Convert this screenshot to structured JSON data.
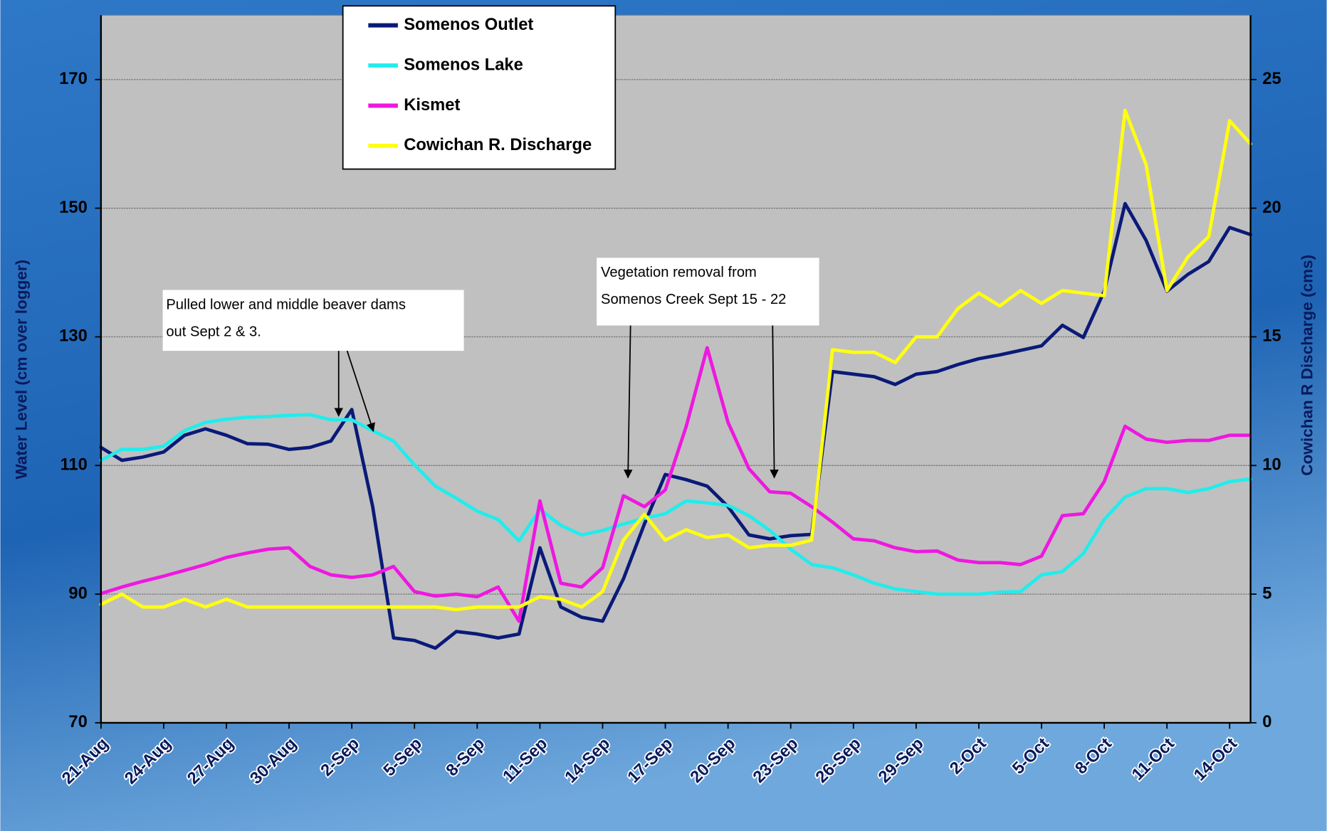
{
  "chart_data": {
    "type": "line",
    "x": [
      "21-Aug",
      null,
      null,
      "24-Aug",
      null,
      null,
      "27-Aug",
      null,
      null,
      "30-Aug",
      null,
      null,
      "2-Sep",
      null,
      null,
      "5-Sep",
      null,
      null,
      "8-Sep",
      null,
      null,
      "11-Sep",
      null,
      null,
      "14-Sep",
      null,
      null,
      "17-Sep",
      null,
      null,
      "20-Sep",
      null,
      null,
      "23-Sep",
      null,
      null,
      "26-Sep",
      null,
      null,
      "29-Sep",
      null,
      null,
      "2-Oct",
      null,
      null,
      "5-Oct",
      null,
      null,
      "8-Oct",
      null,
      null,
      "11-Oct",
      null,
      null,
      "14-Oct",
      null
    ],
    "y_label": "Water Level (cm over logger)",
    "y2_label": "Cowichan R Discharge (cms)",
    "ylim": [
      70,
      180
    ],
    "yticks": [
      70,
      90,
      110,
      130,
      150,
      170
    ],
    "y2lim": [
      0,
      27.5
    ],
    "y2ticks": [
      0,
      5,
      10,
      15,
      20,
      25
    ],
    "grid": true,
    "legend": "top",
    "series": [
      {
        "name": "Somenos Outlet",
        "color": "#0a1a78",
        "axis": "y",
        "values": [
          112.8,
          110.8,
          111.3,
          112.1,
          114.7,
          115.7,
          114.7,
          113.4,
          113.3,
          112.5,
          112.8,
          113.8,
          118.7,
          103.6,
          83.2,
          82.8,
          81.6,
          84.2,
          83.8,
          83.2,
          83.8,
          97.2,
          88,
          86.4,
          85.8,
          92.4,
          100.9,
          108.6,
          107.8,
          106.8,
          103.6,
          99.2,
          98.6,
          99.1,
          99.3,
          124.6,
          124.2,
          123.8,
          122.6,
          124.2,
          124.6,
          125.7,
          126.6,
          127.2,
          127.9,
          128.6,
          131.8,
          129.9,
          137.1,
          150.7,
          145,
          137.1,
          139.7,
          141.7,
          147,
          145.9
        ]
      },
      {
        "name": "Somenos Lake",
        "color": "#22ecec",
        "axis": "y",
        "values": [
          110.8,
          112.5,
          112.5,
          113,
          115.4,
          116.7,
          117.2,
          117.5,
          117.6,
          117.8,
          117.9,
          117.1,
          117.1,
          115.4,
          113.8,
          110.1,
          106.8,
          104.9,
          102.9,
          101.6,
          98.3,
          103.2,
          100.7,
          99.2,
          99.9,
          100.9,
          101.8,
          102.5,
          104.5,
          104.2,
          103.8,
          102.2,
          99.9,
          97,
          94.6,
          94.1,
          93,
          91.7,
          90.8,
          90.4,
          90,
          90,
          90,
          90.3,
          90.4,
          93,
          93.5,
          96.3,
          101.6,
          105.1,
          106.4,
          106.4,
          105.8,
          106.4,
          107.5,
          107.9
        ]
      },
      {
        "name": "Kismet",
        "color": "#ee18e0",
        "axis": "y",
        "values": [
          90.1,
          91.1,
          92,
          92.8,
          93.7,
          94.6,
          95.7,
          96.4,
          97,
          97.2,
          94.3,
          93,
          92.6,
          93,
          94.3,
          90.4,
          89.7,
          90,
          89.6,
          91.1,
          85.8,
          104.5,
          91.7,
          91.1,
          94.1,
          105.3,
          103.6,
          106.2,
          116.1,
          128.3,
          116.7,
          109.5,
          105.9,
          105.7,
          103.6,
          101.2,
          98.6,
          98.3,
          97.2,
          96.6,
          96.7,
          95.3,
          94.9,
          94.9,
          94.6,
          95.9,
          102.2,
          102.5,
          107.5,
          116.1,
          114.1,
          113.6,
          113.9,
          113.9,
          114.7,
          114.7
        ]
      },
      {
        "name": "Cowichan R. Discharge",
        "color": "#ffff10",
        "axis": "y2",
        "values": [
          4.6,
          5,
          4.5,
          4.5,
          4.8,
          4.5,
          4.8,
          4.5,
          4.5,
          4.5,
          4.5,
          4.5,
          4.5,
          4.5,
          4.5,
          4.5,
          4.5,
          4.4,
          4.5,
          4.5,
          4.5,
          4.9,
          4.8,
          4.5,
          5.1,
          7.1,
          8.1,
          7.1,
          7.5,
          7.2,
          7.3,
          6.8,
          6.9,
          6.9,
          7.1,
          14.5,
          14.4,
          14.4,
          14,
          15,
          15,
          16.1,
          16.7,
          16.2,
          16.8,
          16.3,
          16.8,
          16.7,
          16.6,
          23.8,
          21.7,
          16.8,
          18.1,
          18.9,
          23.4,
          22.5
        ]
      }
    ],
    "annotations": [
      {
        "lines": [
          "Pulled lower and middle beaver dams",
          "out Sept 2 & 3."
        ]
      },
      {
        "lines": [
          "Vegetation removal from",
          "Somenos Creek Sept 15 - 22"
        ]
      }
    ]
  }
}
